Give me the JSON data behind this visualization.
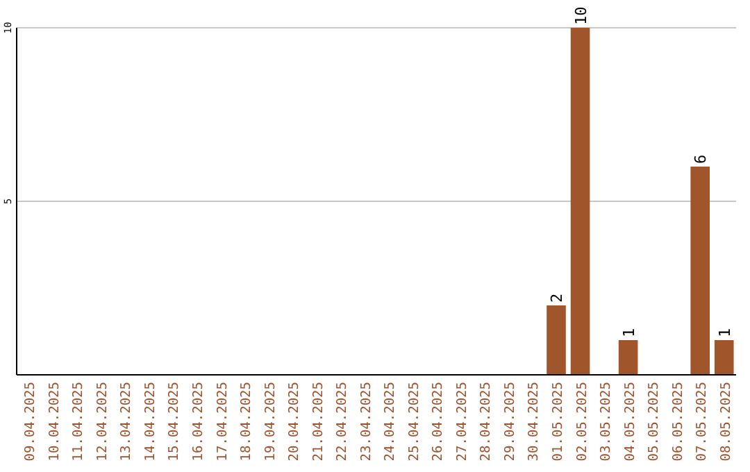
{
  "chart_data": {
    "type": "bar",
    "categories": [
      "09.04.2025",
      "10.04.2025",
      "11.04.2025",
      "12.04.2025",
      "13.04.2025",
      "14.04.2025",
      "15.04.2025",
      "16.04.2025",
      "17.04.2025",
      "18.04.2025",
      "19.04.2025",
      "20.04.2025",
      "21.04.2025",
      "22.04.2025",
      "23.04.2025",
      "24.04.2025",
      "25.04.2025",
      "26.04.2025",
      "27.04.2025",
      "28.04.2025",
      "29.04.2025",
      "30.04.2025",
      "01.05.2025",
      "02.05.2025",
      "03.05.2025",
      "04.05.2025",
      "05.05.2025",
      "06.05.2025",
      "07.05.2025",
      "08.05.2025"
    ],
    "values": [
      0,
      0,
      0,
      0,
      0,
      0,
      0,
      0,
      0,
      0,
      0,
      0,
      0,
      0,
      0,
      0,
      0,
      0,
      0,
      0,
      0,
      0,
      2,
      10,
      0,
      1,
      0,
      0,
      6,
      1
    ],
    "value_labels": [
      null,
      null,
      null,
      null,
      null,
      null,
      null,
      null,
      null,
      null,
      null,
      null,
      null,
      null,
      null,
      null,
      null,
      null,
      null,
      null,
      null,
      null,
      "2",
      "10",
      null,
      "1",
      null,
      null,
      "6",
      "1"
    ],
    "color": "#a0562a",
    "ylim": [
      0,
      10
    ],
    "yticks": [
      5,
      10
    ],
    "grid": "y"
  }
}
